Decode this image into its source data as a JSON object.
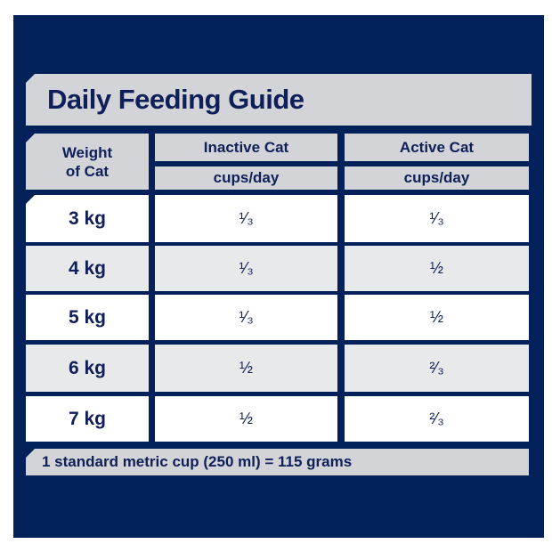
{
  "title": "Daily Feeding Guide",
  "header": {
    "weight_line1": "Weight",
    "weight_line2": "of Cat",
    "inactive": "Inactive Cat",
    "active": "Active Cat",
    "inactive_unit": "cups/day",
    "active_unit": "cups/day"
  },
  "rows": [
    {
      "weight": "3 kg",
      "inactive": "¹⁄₃",
      "active": "¹⁄₃"
    },
    {
      "weight": "4 kg",
      "inactive": "¹⁄₃",
      "active": "½"
    },
    {
      "weight": "5 kg",
      "inactive": "¹⁄₃",
      "active": "½"
    },
    {
      "weight": "6 kg",
      "inactive": "½",
      "active": "²⁄₃"
    },
    {
      "weight": "7 kg",
      "inactive": "½",
      "active": "²⁄₃"
    }
  ],
  "footer": "1 standard metric cup (250 ml) =  115 grams",
  "colors": {
    "navy": "#02215a",
    "header_grey": "#d3d4d7",
    "row_grey": "#e8e9eb",
    "text": "#0f1f5a"
  }
}
